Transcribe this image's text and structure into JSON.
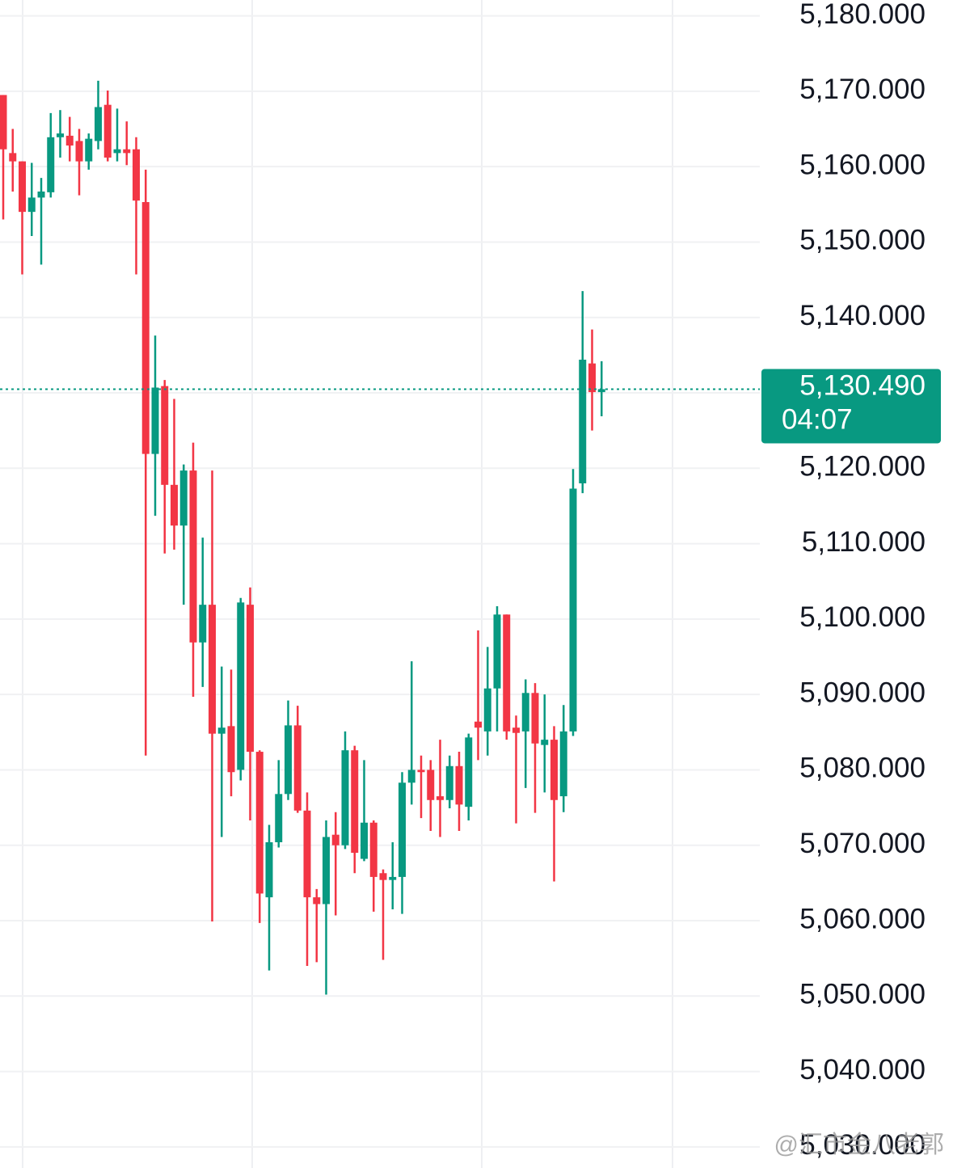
{
  "chart_data": {
    "type": "candlestick",
    "ylim": [
      5027.2,
      5182.1
    ],
    "yticks": [
      {
        "value": 5030,
        "label": "5,030.000"
      },
      {
        "value": 5040,
        "label": "5,040.000"
      },
      {
        "value": 5050,
        "label": "5,050.000"
      },
      {
        "value": 5060,
        "label": "5,060.000"
      },
      {
        "value": 5070,
        "label": "5,070.000"
      },
      {
        "value": 5080,
        "label": "5,080.000"
      },
      {
        "value": 5090,
        "label": "5,090.000"
      },
      {
        "value": 5100,
        "label": "5,100.000"
      },
      {
        "value": 5110,
        "label": "5,110.000"
      },
      {
        "value": 5120,
        "label": "5,120.000"
      },
      {
        "value": 5130,
        "label": "5,130.000"
      },
      {
        "value": 5140,
        "label": "5,140.000"
      },
      {
        "value": 5150,
        "label": "5,150.000"
      },
      {
        "value": 5160,
        "label": "5,160.000"
      },
      {
        "value": 5170,
        "label": "5,170.000"
      },
      {
        "value": 5180,
        "label": "5,180.000"
      }
    ],
    "hidden_tick": 5130,
    "grid": true,
    "up_color": "#089981",
    "down_color": "#f23645",
    "open": [
      5169.5,
      5161.8,
      5160.7,
      5154,
      5155.9,
      5156.6,
      5163.9,
      5164.1,
      5163.4,
      5160.7,
      5163.4,
      5168.2,
      5161.8,
      5162.3,
      5162.3,
      5155.3,
      5121.9,
      5130.9,
      5117.8,
      5112.4,
      5119.7,
      5096.9,
      5101.9,
      5084.8,
      5085.8,
      5080,
      5101.9,
      5082.4,
      5063.1,
      5070.4,
      5076.8,
      5085.9,
      5074.6,
      5063.1,
      5062.2,
      5071.4,
      5070,
      5082.6,
      5068.2,
      5073,
      5066.3,
      5065.4,
      5065.8,
      5078.3,
      5080,
      5080,
      5076.5,
      5076,
      5080.5,
      5075.1,
      5086.4,
      5085.1,
      5090.8,
      5100.6,
      5085.6,
      5085.1,
      5090.2,
      5083.3,
      5084,
      5076.5,
      5085.1,
      5118,
      5133.9,
      5130.1
    ],
    "high": [
      5169.5,
      5165,
      5160.7,
      5160.5,
      5158.5,
      5167.1,
      5167.5,
      5166.6,
      5165,
      5164.4,
      5171.4,
      5170.1,
      5167.7,
      5166,
      5163.9,
      5159.6,
      5137.6,
      5131.7,
      5129.2,
      5120.5,
      5123.4,
      5110.8,
      5119.7,
      5093.7,
      5093.3,
      5102.8,
      5104.2,
      5082.6,
      5072.7,
      5081.3,
      5089.2,
      5088.5,
      5077,
      5064.2,
      5073.3,
      5074.4,
      5085.1,
      5083.2,
      5081.3,
      5073.3,
      5066.8,
      5070.4,
      5079.7,
      5094.4,
      5081.9,
      5081.3,
      5084,
      5081.9,
      5082.4,
      5084.8,
      5098.5,
      5096.3,
      5101.7,
      5100.6,
      5087.2,
      5092,
      5091.5,
      5090,
      5085.8,
      5088.6,
      5119.9,
      5143.5,
      5138.4,
      5134.2
    ],
    "low": [
      5153,
      5156.7,
      5145.7,
      5150.8,
      5147,
      5155.9,
      5161.2,
      5160.7,
      5156.2,
      5159.6,
      5162.3,
      5160.7,
      5160.7,
      5160.2,
      5145.7,
      5081.9,
      5113.7,
      5108.7,
      5109.2,
      5101.9,
      5089.7,
      5091,
      5059.9,
      5071.1,
      5076.5,
      5078.6,
      5073.3,
      5059.7,
      5053.4,
      5069.7,
      5076,
      5074.3,
      5054,
      5054.5,
      5050.2,
      5060.7,
      5069.5,
      5066.3,
      5067.9,
      5061.2,
      5054.8,
      5061.5,
      5060.9,
      5075.4,
      5073.6,
      5071.9,
      5071.1,
      5074.9,
      5071.9,
      5073.3,
      5081.3,
      5081.9,
      5085.1,
      5084,
      5072.9,
      5077.6,
      5074.3,
      5077,
      5065.2,
      5074.4,
      5084.5,
      5116.7,
      5125,
      5126.9
    ],
    "close": [
      5162.3,
      5160.7,
      5154,
      5155.9,
      5156.7,
      5163.9,
      5164.4,
      5162.8,
      5160.7,
      5163.7,
      5167.9,
      5161.2,
      5162.3,
      5161.8,
      5155.5,
      5121.9,
      5130.7,
      5117.8,
      5112.4,
      5119.7,
      5096.9,
      5101.9,
      5084.8,
      5085.6,
      5079.7,
      5102.2,
      5082.4,
      5063.6,
      5070.4,
      5076.8,
      5085.9,
      5074.6,
      5063.1,
      5062.2,
      5071.1,
      5070,
      5082.6,
      5069,
      5073,
      5065.8,
      5065.4,
      5065.8,
      5078.3,
      5080,
      5079.7,
      5076,
      5076,
      5080.5,
      5075.4,
      5084.3,
      5085.6,
      5090.8,
      5100.6,
      5085.1,
      5084.9,
      5090.2,
      5083.5,
      5084,
      5076,
      5085.1,
      5117.3,
      5134.4,
      5130.1,
      5130.49
    ],
    "last_price": {
      "value": 5130.49,
      "label": "5,130.490"
    },
    "countdown": "04:07",
    "watermark": "@汇市金八老郭"
  }
}
